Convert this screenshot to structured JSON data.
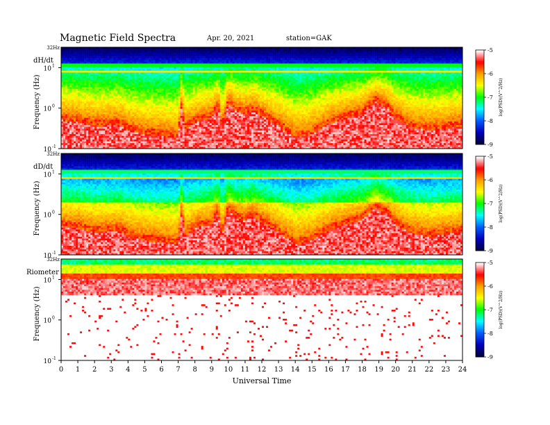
{
  "header": {
    "title": "Magnetic  Field  Spectra",
    "date": "Apr. 20, 2021",
    "station": "station=GAK"
  },
  "chart_data": [
    {
      "type": "heatmap",
      "panel_label": "dH/dt",
      "ylabel": "Frequency  (Hz)",
      "top_label": "32Hz",
      "yticks": [
        "10",
        "10",
        "10"
      ],
      "ytick_exponents": [
        "1",
        "0",
        "-1"
      ],
      "ytick_values": [
        10,
        1,
        0.1
      ],
      "yscale": "log",
      "ylim": [
        0.1,
        32
      ],
      "xlim": [
        0,
        24
      ],
      "colorbar": {
        "label": "log(PSD)(V^2/Hz)",
        "ticks": [
          "-5",
          "-6",
          "-7",
          "-8",
          "-9"
        ],
        "range": [
          -9,
          -5
        ]
      },
      "spectrum": "magnetometer"
    },
    {
      "type": "heatmap",
      "panel_label": "dD/dt",
      "ylabel": "Frequency  (Hz)",
      "top_label": "32Hz",
      "yticks": [
        "10",
        "10",
        "10"
      ],
      "ytick_exponents": [
        "1",
        "0",
        "-1"
      ],
      "ytick_values": [
        10,
        1,
        0.1
      ],
      "yscale": "log",
      "ylim": [
        0.1,
        32
      ],
      "xlim": [
        0,
        24
      ],
      "colorbar": {
        "label": "log(PSD)(V^2/Hz)",
        "ticks": [
          "-5",
          "-6",
          "-7",
          "-8",
          "-9"
        ],
        "range": [
          -9,
          -5
        ]
      },
      "spectrum": "magnetometer"
    },
    {
      "type": "heatmap",
      "panel_label": "Riometer",
      "ylabel": "Frequency  (Hz)",
      "top_label": "32Hz",
      "yticks": [
        "10",
        "10",
        "10"
      ],
      "ytick_exponents": [
        "1",
        "0",
        "-1"
      ],
      "ytick_values": [
        10,
        1,
        0.1
      ],
      "yscale": "log",
      "ylim": [
        0.1,
        32
      ],
      "xlim": [
        0,
        24
      ],
      "colorbar": {
        "label": "log(PSD)(V^2/Hz)",
        "ticks": [
          "-5",
          "-6",
          "-7",
          "-8",
          "-9"
        ],
        "range": [
          -9,
          -5
        ]
      },
      "spectrum": "riometer"
    }
  ],
  "xaxis": {
    "label": "Universal Time",
    "ticks": [
      "0",
      "1",
      "2",
      "3",
      "4",
      "5",
      "6",
      "7",
      "8",
      "9",
      "10",
      "11",
      "12",
      "13",
      "14",
      "15",
      "16",
      "17",
      "18",
      "19",
      "20",
      "21",
      "22",
      "23",
      "24"
    ]
  },
  "colors": {
    "scale": [
      "#ffffff",
      "#ff0000",
      "#ffa000",
      "#ffff00",
      "#00ff00",
      "#00ffff",
      "#0060ff",
      "#0000c0",
      "#000040"
    ]
  }
}
